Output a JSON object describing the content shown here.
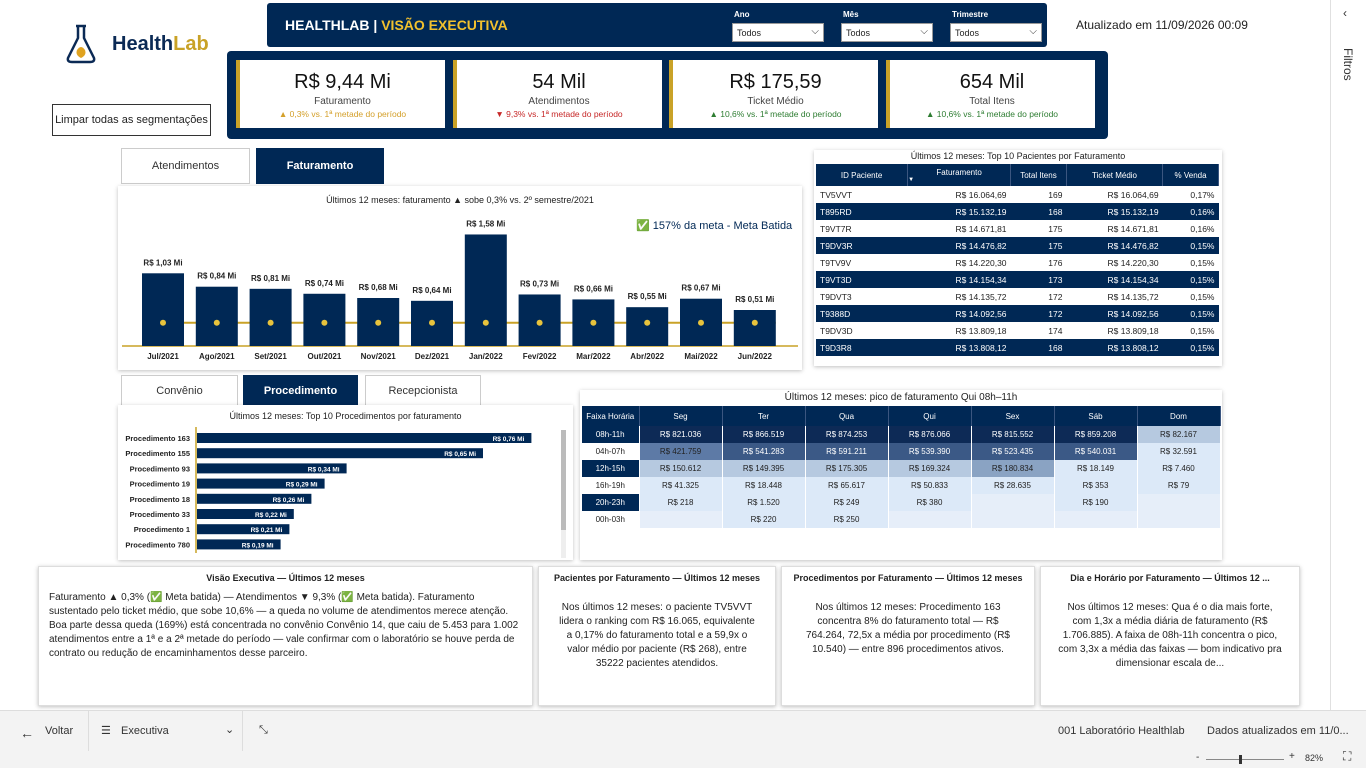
{
  "header": {
    "brand_a": "Health",
    "brand_b": "Lab",
    "title_a": "HEALTHLAB",
    "title_sep": " | ",
    "title_b": "VISÃO EXECUTIVA",
    "updated": "Atualizado em 11/09/2026 00:09"
  },
  "slicers": [
    {
      "label": "Ano",
      "value": "Todos"
    },
    {
      "label": "Mês",
      "value": "Todos"
    },
    {
      "label": "Trimestre",
      "value": "Todos"
    }
  ],
  "clear_btn": "Limpar todas as segmentações",
  "kpis": [
    {
      "value": "R$ 9,44 Mi",
      "label": "Faturamento",
      "delta": "▲ 0,3% vs. 1ª metade do período",
      "tone": "up-y"
    },
    {
      "value": "54 Mil",
      "label": "Atendimentos",
      "delta": "▼ 9,3% vs. 1ª metade do período",
      "tone": "down-r"
    },
    {
      "value": "R$ 175,59",
      "label": "Ticket Médio",
      "delta": "▲ 10,6% vs. 1ª metade do período",
      "tone": "up-g"
    },
    {
      "value": "654 Mil",
      "label": "Total Itens",
      "delta": "▲ 10,6% vs. 1ª metade do período",
      "tone": "up-g"
    }
  ],
  "tabs1": [
    "Atendimentos",
    "Faturamento"
  ],
  "tabs2": [
    "Convênio",
    "Procedimento",
    "Recepcionista"
  ],
  "bar_chart": {
    "title": "Últimos 12 meses: faturamento ▲ sobe 0,3% vs. 2º semestre/2021",
    "goal_text": "157% da meta - Meta Batida",
    "goal_icon": "✅",
    "chart_data": {
      "type": "bar",
      "categories": [
        "Jul/2021",
        "Ago/2021",
        "Set/2021",
        "Out/2021",
        "Nov/2021",
        "Dez/2021",
        "Jan/2022",
        "Fev/2022",
        "Mar/2022",
        "Abr/2022",
        "Mai/2022",
        "Jun/2022"
      ],
      "values": [
        1.03,
        0.84,
        0.81,
        0.74,
        0.68,
        0.64,
        1.58,
        0.73,
        0.66,
        0.55,
        0.67,
        0.51
      ],
      "labels": [
        "R$ 1,03 Mi",
        "R$ 0,84 Mi",
        "R$ 0,81 Mi",
        "R$ 0,74 Mi",
        "R$ 0,68 Mi",
        "R$ 0,64 Mi",
        "R$ 1,58 Mi",
        "R$ 0,73 Mi",
        "R$ 0,66 Mi",
        "R$ 0,55 Mi",
        "R$ 0,67 Mi",
        "R$ 0,51 Mi"
      ],
      "goal_line": 0.33,
      "ylim": [
        0,
        1.7
      ]
    }
  },
  "proc_chart": {
    "title": "Últimos 12 meses: Top 10 Procedimentos por faturamento",
    "chart_data": {
      "type": "bar",
      "orientation": "horizontal",
      "categories": [
        "Procedimento 163",
        "Procedimento 155",
        "Procedimento 93",
        "Procedimento 19",
        "Procedimento 18",
        "Procedimento 33",
        "Procedimento 1",
        "Procedimento 780"
      ],
      "values": [
        0.76,
        0.65,
        0.34,
        0.29,
        0.26,
        0.22,
        0.21,
        0.19
      ],
      "labels": [
        "R$ 0,76 Mi",
        "R$ 0,65 Mi",
        "R$ 0,34 Mi",
        "R$ 0,29 Mi",
        "R$ 0,26 Mi",
        "R$ 0,22 Mi",
        "R$ 0,21 Mi",
        "R$ 0,19 Mi"
      ],
      "xlim": [
        0,
        0.8
      ]
    }
  },
  "top10": {
    "title": "Últimos 12 meses: Top 10 Pacientes por Faturamento",
    "headers": [
      "ID Paciente",
      "Faturamento",
      "Total Itens",
      "Ticket Médio",
      "% Venda"
    ],
    "rows": [
      [
        "TV5VVT",
        "R$ 16.064,69",
        "169",
        "R$ 16.064,69",
        "0,17%"
      ],
      [
        "T895RD",
        "R$ 15.132,19",
        "168",
        "R$ 15.132,19",
        "0,16%"
      ],
      [
        "T9VT7R",
        "R$ 14.671,81",
        "175",
        "R$ 14.671,81",
        "0,16%"
      ],
      [
        "T9DV3R",
        "R$ 14.476,82",
        "175",
        "R$ 14.476,82",
        "0,15%"
      ],
      [
        "T9TV9V",
        "R$ 14.220,30",
        "176",
        "R$ 14.220,30",
        "0,15%"
      ],
      [
        "T9VT3D",
        "R$ 14.154,34",
        "173",
        "R$ 14.154,34",
        "0,15%"
      ],
      [
        "T9DVT3",
        "R$ 14.135,72",
        "172",
        "R$ 14.135,72",
        "0,15%"
      ],
      [
        "T9388D",
        "R$ 14.092,56",
        "172",
        "R$ 14.092,56",
        "0,15%"
      ],
      [
        "T9DV3D",
        "R$ 13.809,18",
        "174",
        "R$ 13.809,18",
        "0,15%"
      ],
      [
        "T9D3R8",
        "R$ 13.808,12",
        "168",
        "R$ 13.808,12",
        "0,15%"
      ]
    ]
  },
  "heatmap": {
    "title": "Últimos 12 meses: pico de faturamento Qui 08h–11h",
    "headers": [
      "Faixa Horária",
      "Seg",
      "Ter",
      "Qua",
      "Qui",
      "Sex",
      "Sáb",
      "Dom"
    ],
    "rows": [
      {
        "label": "08h-11h",
        "dark": true,
        "cells": [
          "R$ 821.036",
          "R$ 866.519",
          "R$ 874.253",
          "R$ 876.066",
          "R$ 815.552",
          "R$ 859.208",
          "R$ 82.167"
        ],
        "lv": [
          5,
          5,
          5,
          5,
          5,
          5,
          1
        ]
      },
      {
        "label": "04h-07h",
        "dark": false,
        "cells": [
          "R$ 421.759",
          "R$ 541.283",
          "R$ 591.211",
          "R$ 539.390",
          "R$ 523.435",
          "R$ 540.031",
          "R$ 32.591"
        ],
        "lv": [
          3,
          4,
          4,
          4,
          4,
          4,
          0
        ]
      },
      {
        "label": "12h-15h",
        "dark": true,
        "cells": [
          "R$ 150.612",
          "R$ 149.395",
          "R$ 175.305",
          "R$ 169.324",
          "R$ 180.834",
          "R$ 18.149",
          "R$ 7.460"
        ],
        "lv": [
          1,
          1,
          1,
          1,
          2,
          0,
          0
        ]
      },
      {
        "label": "16h-19h",
        "dark": false,
        "cells": [
          "R$ 41.325",
          "R$ 18.448",
          "R$ 65.617",
          "R$ 50.833",
          "R$ 28.635",
          "R$ 353",
          "R$ 79"
        ],
        "lv": [
          0,
          0,
          0,
          0,
          0,
          0,
          0
        ]
      },
      {
        "label": "20h-23h",
        "dark": true,
        "cells": [
          "R$ 218",
          "R$ 1.520",
          "R$ 249",
          "R$ 380",
          "",
          "R$ 190",
          ""
        ],
        "lv": [
          0,
          0,
          0,
          0,
          0,
          0,
          0
        ]
      },
      {
        "label": "00h-03h",
        "dark": false,
        "cells": [
          "",
          "R$ 220",
          "R$ 250",
          "",
          "",
          "",
          ""
        ],
        "lv": [
          0,
          0,
          0,
          0,
          0,
          0,
          0
        ]
      }
    ]
  },
  "narratives": [
    {
      "title": "Visão Executiva — Últimos 12 meses",
      "body": "Faturamento ▲ 0,3% (✅ Meta batida) — Atendimentos ▼ 9,3% (✅ Meta batida). Faturamento sustentado pelo ticket médio, que sobe 10,6% — a queda no volume de atendimentos merece atenção. Boa parte dessa queda (169%) está concentrada no convênio Convênio 14, que caiu de 5.453 para 1.002 atendimentos entre a 1ª e a 2ª metade do período — vale confirmar com o laboratório se houve perda de contrato ou redução de encaminhamentos desse parceiro."
    },
    {
      "title": "Pacientes por Faturamento — Últimos 12 meses",
      "body": "Nos últimos 12 meses: o paciente TV5VVT lidera o ranking com R$ 16.065, equivalente a 0,17% do faturamento total e a 59,9x o valor médio por paciente (R$ 268), entre 35222 pacientes atendidos."
    },
    {
      "title": "Procedimentos por Faturamento — Últimos 12 meses",
      "body": "Nos últimos 12 meses: Procedimento 163 concentra 8% do faturamento total — R$ 764.264, 72,5x a média por procedimento (R$ 10.540) — entre 896 procedimentos ativos."
    },
    {
      "title": "Dia e Horário por Faturamento — Últimos 12 ...",
      "body": "Nos últimos 12 meses: Qua é o dia mais forte, com 1,3x a média diária de faturamento (R$ 1.706.885). A faixa de 08h-11h concentra o pico, com 3,3x a média das faixas — bom indicativo pra dimensionar escala de..."
    }
  ],
  "filters_label": "Filtros",
  "bottom": {
    "back": "Voltar",
    "page": "Executiva",
    "org": "001 Laboratório Healthlab",
    "status": "Dados atualizados em 11/0...",
    "zoom": "82%",
    "minus": "-",
    "plus": "+"
  }
}
